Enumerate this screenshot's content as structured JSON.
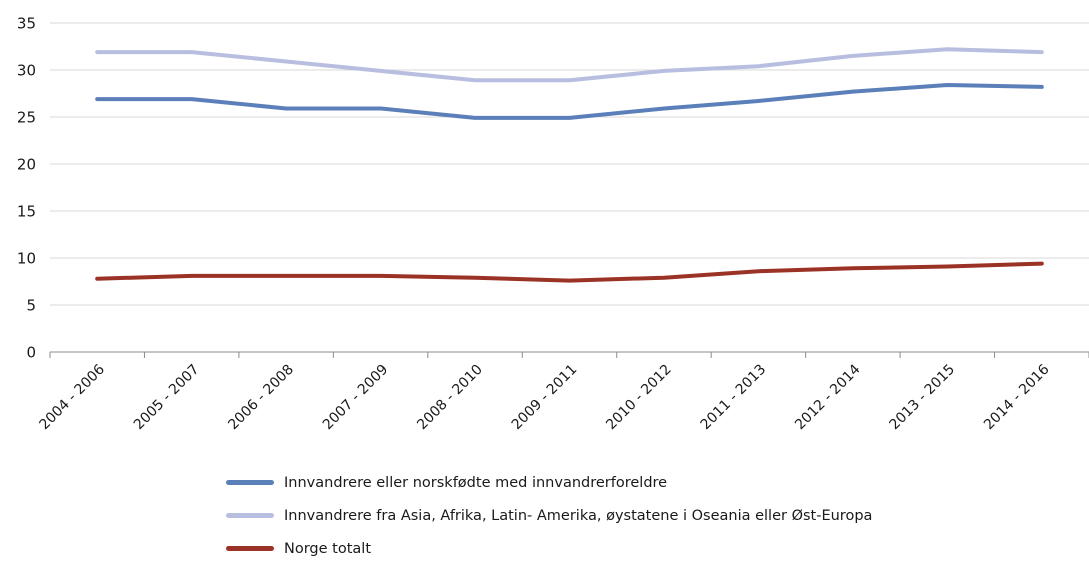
{
  "chart_data": {
    "type": "line",
    "title": "",
    "xlabel": "",
    "ylabel": "",
    "ylim": [
      0,
      35
    ],
    "yticks": [
      0,
      5,
      10,
      15,
      20,
      25,
      30,
      35
    ],
    "grid": true,
    "legend_position": "bottom",
    "categories": [
      "2004 - 2006",
      "2005 - 2007",
      "2006 - 2008",
      "2007 - 2009",
      "2008 - 2010",
      "2009 - 2011",
      "2010 - 2012",
      "2011 - 2013",
      "2012 - 2014",
      "2013 - 2015",
      "2014 - 2016"
    ],
    "series": [
      {
        "name": "Innvandrere eller norskfødte med innvandrerforeldre",
        "color": "#5b7fb9",
        "values": [
          26.9,
          26.9,
          25.9,
          25.9,
          24.9,
          24.9,
          25.9,
          26.7,
          27.7,
          28.4,
          28.2
        ]
      },
      {
        "name": "Innvandrere fra Asia, Afrika, Latin- Amerika, øystatene i Oseania eller Øst-Europa",
        "color": "#b8bedf",
        "values": [
          31.9,
          31.9,
          30.9,
          29.9,
          28.9,
          28.9,
          29.9,
          30.4,
          31.5,
          32.2,
          31.9
        ]
      },
      {
        "name": "Norge totalt",
        "color": "#9b3226",
        "values": [
          7.8,
          8.1,
          8.1,
          8.1,
          7.9,
          7.6,
          7.9,
          8.6,
          8.9,
          9.1,
          9.4
        ]
      }
    ]
  }
}
